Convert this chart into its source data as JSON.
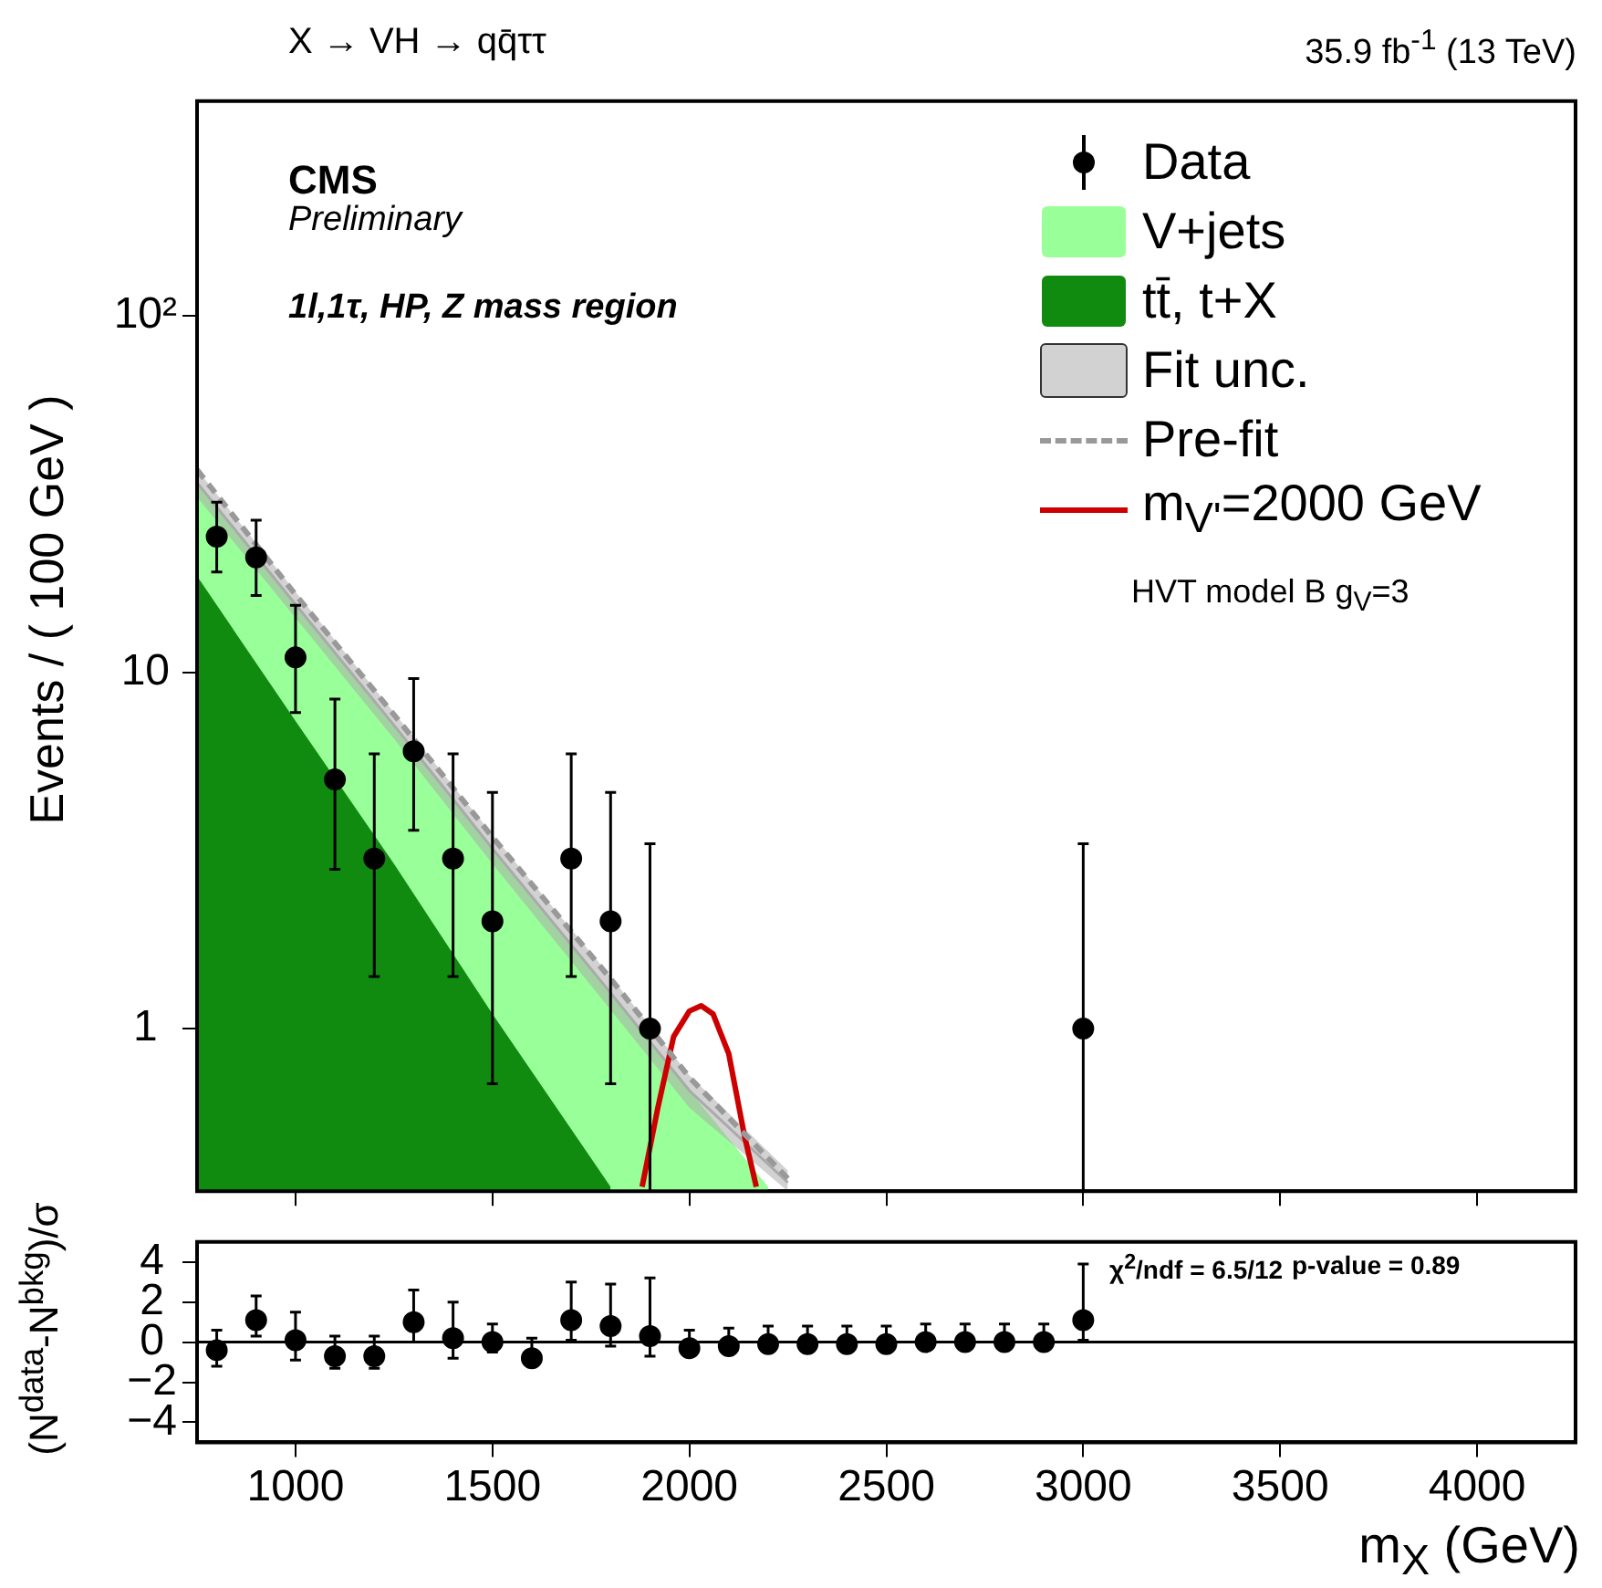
{
  "chart_data": [
    {
      "type": "scatter",
      "title": "X → VH → qq̄ττ",
      "ylabel": "Events / ( 100 GeV )",
      "log": "y",
      "legend": "top right",
      "tick_labels": "y",
      "xlim": [
        750,
        4250
      ],
      "xticks": [
        {
          "value": 1000,
          "label": null
        },
        {
          "value": 1500,
          "label": null
        },
        {
          "value": 2000,
          "label": null
        },
        {
          "value": 2500,
          "label": null
        },
        {
          "value": 3000,
          "label": null
        },
        {
          "value": 3500,
          "label": null
        },
        {
          "value": 4000,
          "label": null
        }
      ],
      "ylim": [
        0.35,
        400
      ],
      "yticks": [
        1,
        10,
        {
          "value": 100,
          "label": "10²"
        }
      ],
      "annotations": [
        "CMS",
        "Preliminary",
        "1l,1τ, HP, Z mass region",
        "35.9 fb$^{-1}$ (13 TeV)",
        "HVT model B g$_{V}$=3"
      ],
      "series": [
        {
          "name": "Data",
          "marker": "circle",
          "color": "#000000",
          "x": [
            800,
            900,
            1000,
            1100,
            1200,
            1300,
            1400,
            1500,
            1600,
            1700,
            1800,
            1900,
            2000,
            2100,
            2200,
            2300,
            2400,
            2500,
            2600,
            2700,
            2800,
            2900,
            3000
          ],
          "values": [
            24,
            21,
            11,
            5,
            3,
            6,
            3,
            2,
            null,
            3,
            2,
            1,
            null,
            null,
            null,
            null,
            null,
            null,
            null,
            null,
            null,
            null,
            1
          ],
          "errors": [
            [
              19.1,
              30.0
            ],
            [
              16.4,
              26.7
            ],
            [
              7.7,
              15.4
            ],
            [
              2.8,
              8.4
            ],
            [
              1.4,
              5.9
            ],
            [
              3.6,
              9.6
            ],
            [
              1.4,
              5.9
            ],
            [
              0.7,
              4.6
            ],
            null,
            [
              1.4,
              5.9
            ],
            [
              0.7,
              4.6
            ],
            [
              0.35,
              3.3
            ],
            null,
            null,
            null,
            null,
            null,
            null,
            null,
            null,
            null,
            null,
            [
              0.35,
              3.3
            ]
          ]
        },
        {
          "name": "V+jets",
          "type": "area",
          "color": "#99ff99",
          "x": [
            750,
            1000,
            1250,
            1500,
            1800,
            2000,
            2200
          ],
          "values": [
            34,
            15.5,
            7.1,
            3.2,
            1.26,
            0.67,
            0.36
          ]
        },
        {
          "name": "tt̄, t+X",
          "type": "area",
          "color": "#108b10",
          "x": [
            750,
            1000,
            1250,
            1500,
            1800
          ],
          "values": [
            18.6,
            7.3,
            2.9,
            1.1,
            0.36
          ]
        },
        {
          "name": "Fit unc.",
          "type": "line",
          "color": "#aaaaaa",
          "x": [
            750,
            1000,
            1250,
            1500,
            1800,
            2000,
            2250
          ],
          "values": [
            34,
            15.5,
            7.1,
            3.2,
            1.26,
            0.67,
            0.37
          ],
          "lower": [
            31,
            14.2,
            6.5,
            2.9,
            1.13,
            0.6,
            0.35
          ],
          "upper": [
            37,
            16.8,
            7.7,
            3.5,
            1.4,
            0.74,
            0.4
          ]
        },
        {
          "name": "Pre-fit",
          "type": "line",
          "line_style": "dashed",
          "color": "#999999",
          "x": [
            750,
            1000,
            1250,
            1500,
            1800,
            2000,
            2250
          ],
          "values": [
            37,
            16.5,
            7.6,
            3.45,
            1.38,
            0.73,
            0.38
          ]
        },
        {
          "name": "m$_{V'}$=2000 GeV",
          "type": "line",
          "color": "#cc0000",
          "x": [
            1880,
            1920,
            1960,
            2000,
            2030,
            2060,
            2100,
            2140,
            2170
          ],
          "values": [
            0.36,
            0.6,
            0.95,
            1.12,
            1.16,
            1.1,
            0.85,
            0.5,
            0.36
          ]
        }
      ]
    },
    {
      "type": "scatter",
      "xlabel": "m$_{X}$ (GeV)",
      "ylabel": "(N$^{data}$-N$^{bkg}$)/σ",
      "xlim": [
        750,
        4250
      ],
      "xticks": [
        1000,
        1500,
        2000,
        2500,
        3000,
        3500,
        4000
      ],
      "ylim": [
        -5,
        5
      ],
      "yticks": [
        {
          "value": -4,
          "label": "−4"
        },
        {
          "value": -2,
          "label": "−2"
        },
        0,
        2,
        4
      ],
      "annotations": [
        "χ$^{2}$/ndf = 6.5/12",
        "p-value = 0.89"
      ],
      "ref_lines": [
        {
          "axis": "y",
          "value": 0,
          "color": "#000000"
        }
      ],
      "series": [
        {
          "marker": "circle",
          "color": "#000000",
          "x": [
            800,
            900,
            1000,
            1100,
            1200,
            1300,
            1400,
            1500,
            1600,
            1700,
            1800,
            1900,
            2000,
            2100,
            2200,
            2300,
            2400,
            2500,
            2600,
            2700,
            2800,
            2900,
            3000
          ],
          "values": [
            -0.4,
            1.1,
            0.1,
            -0.7,
            -0.7,
            1.0,
            0.2,
            0.0,
            -0.8,
            1.1,
            0.8,
            0.3,
            -0.3,
            -0.2,
            -0.1,
            -0.1,
            -0.1,
            -0.1,
            0,
            0,
            0,
            0,
            1.1
          ],
          "errors": [
            [
              -1.2,
              0.6
            ],
            [
              0.3,
              2.3
            ],
            [
              -0.9,
              1.5
            ],
            [
              -1.3,
              0.3
            ],
            [
              -1.3,
              0.3
            ],
            [
              0.0,
              2.6
            ],
            [
              -0.8,
              2.0
            ],
            [
              -0.5,
              0.9
            ],
            [
              -0.8,
              0.2
            ],
            [
              0.1,
              3.0
            ],
            [
              -0.2,
              2.9
            ],
            [
              -0.7,
              3.2
            ],
            [
              -0.3,
              0.6
            ],
            [
              -0.2,
              0.7
            ],
            [
              -0.1,
              0.8
            ],
            [
              -0.1,
              0.8
            ],
            [
              -0.1,
              0.8
            ],
            [
              -0.1,
              0.8
            ],
            [
              0,
              0.9
            ],
            [
              0,
              0.9
            ],
            [
              0,
              0.9
            ],
            [
              0,
              0.9
            ],
            [
              0.1,
              3.9
            ]
          ]
        }
      ]
    }
  ]
}
